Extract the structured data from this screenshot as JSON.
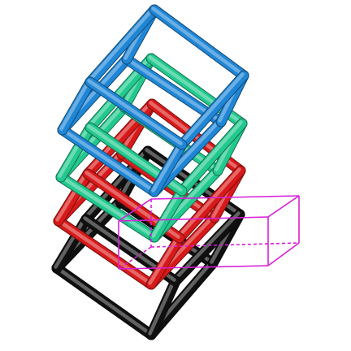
{
  "colors": {
    "background": "#ffffff",
    "cube_blue": "#1f86d6",
    "cube_green": "#22c98f",
    "cube_red": "#d81919",
    "cube_black": "#101010",
    "box_magenta": "#d81fd8"
  },
  "cubes": [
    {
      "name": "blue-cube",
      "color_key": "cube_blue"
    },
    {
      "name": "green-cube",
      "color_key": "cube_green"
    },
    {
      "name": "red-cube",
      "color_key": "cube_red"
    },
    {
      "name": "black-cube",
      "color_key": "cube_black"
    }
  ],
  "box": {
    "name": "magenta-box",
    "color_key": "box_magenta",
    "hidden_edges": "dashed"
  }
}
